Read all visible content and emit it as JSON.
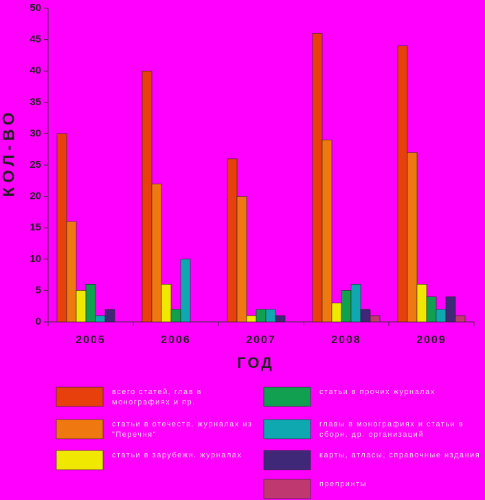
{
  "chart_data": {
    "type": "bar",
    "y_label": "КОЛ-ВО",
    "x_label": "ГОД",
    "categories": [
      "2005",
      "2006",
      "2007",
      "2008",
      "2009"
    ],
    "series": [
      {
        "name": "всего статей, глав в монографиях и пр.",
        "color": "#e8400c",
        "values": [
          30,
          40,
          26,
          46,
          44
        ]
      },
      {
        "name": "статьи в отечеств. журналах из \"Перечня\"",
        "color": "#f07810",
        "values": [
          16,
          22,
          20,
          29,
          27
        ]
      },
      {
        "name": "статьи в зарубежн. журналах",
        "color": "#f0e800",
        "values": [
          5,
          6,
          1,
          3,
          6
        ]
      },
      {
        "name": "статьи в прочих журналах",
        "color": "#10a050",
        "values": [
          6,
          2,
          2,
          5,
          4
        ]
      },
      {
        "name": "главы в монографиях и статьи в сборн. др. организаций",
        "color": "#10a8b0",
        "values": [
          1,
          10,
          2,
          6,
          2
        ]
      },
      {
        "name": "карты, атласы, справочные издания",
        "color": "#402878",
        "values": [
          2,
          0,
          1,
          2,
          4
        ]
      },
      {
        "name": "препринты",
        "color": "#c03870",
        "values": [
          0,
          0,
          0,
          1,
          1
        ]
      }
    ],
    "ylim": [
      0,
      50
    ],
    "yticks": [
      0,
      5,
      10,
      15,
      20,
      25,
      30,
      35,
      40,
      45,
      50
    ]
  }
}
